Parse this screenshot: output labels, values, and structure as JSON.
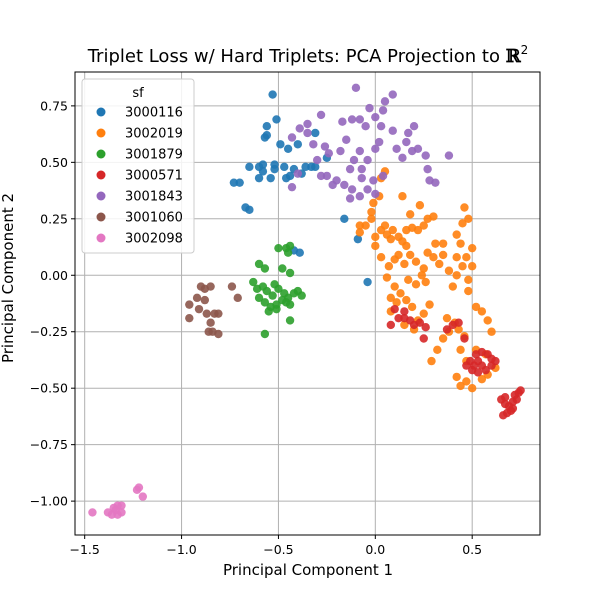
{
  "chart_data": {
    "type": "scatter",
    "title": "Triplet Loss w/ Hard Triplets: PCA Projection to ℝ²",
    "title_text": "Triplet Loss w/ Hard Triplets: PCA Projection to",
    "title_symbol": "ℝ",
    "title_superscript": "2",
    "xlabel": "Principal Component 1",
    "ylabel": "Principal Component 2",
    "xlim": [
      -1.55,
      0.85
    ],
    "ylim": [
      -1.15,
      0.9
    ],
    "xticks": [
      -1.5,
      -1.0,
      -0.5,
      0.0,
      0.5
    ],
    "xtick_labels": [
      "−1.5",
      "−1.0",
      "−0.5",
      "0.0",
      "0.5"
    ],
    "yticks": [
      -1.0,
      -0.75,
      -0.5,
      -0.25,
      0.0,
      0.25,
      0.5,
      0.75
    ],
    "ytick_labels": [
      "−1.00",
      "−0.75",
      "−0.50",
      "−0.25",
      "0.00",
      "0.25",
      "0.50",
      "0.75"
    ],
    "grid": true,
    "legend_title": "sf",
    "legend_position": "top-left",
    "series": [
      {
        "name": "3000116",
        "color": "#1f77b4",
        "points": [
          [
            -0.53,
            0.8
          ],
          [
            -0.51,
            0.69
          ],
          [
            -0.56,
            0.66
          ],
          [
            -0.56,
            0.62
          ],
          [
            -0.57,
            0.61
          ],
          [
            -0.49,
            0.58
          ],
          [
            -0.45,
            0.56
          ],
          [
            -0.4,
            0.58
          ],
          [
            -0.31,
            0.63
          ],
          [
            -0.65,
            0.48
          ],
          [
            -0.6,
            0.48
          ],
          [
            -0.58,
            0.49
          ],
          [
            -0.58,
            0.46
          ],
          [
            -0.6,
            0.43
          ],
          [
            -0.54,
            0.43
          ],
          [
            -0.52,
            0.47
          ],
          [
            -0.47,
            0.48
          ],
          [
            -0.44,
            0.44
          ],
          [
            -0.42,
            0.47
          ],
          [
            -0.38,
            0.45
          ],
          [
            -0.36,
            0.48
          ],
          [
            -0.33,
            0.48
          ],
          [
            -0.31,
            0.48
          ],
          [
            -0.7,
            0.41
          ],
          [
            -0.73,
            0.41
          ],
          [
            -0.67,
            0.3
          ],
          [
            -0.65,
            0.29
          ],
          [
            -0.52,
            0.49
          ],
          [
            -0.46,
            0.43
          ],
          [
            -0.39,
            0.1
          ],
          [
            -0.42,
            0.11
          ],
          [
            -0.04,
            -0.03
          ],
          [
            -0.25,
            0.52
          ],
          [
            -0.16,
            0.25
          ],
          [
            -0.09,
            0.16
          ]
        ]
      },
      {
        "name": "3002019",
        "color": "#ff7f0e",
        "points": [
          [
            0.05,
            0.46
          ],
          [
            0.03,
            0.43
          ],
          [
            0.02,
            0.35
          ],
          [
            -0.01,
            0.32
          ],
          [
            -0.02,
            0.28
          ],
          [
            -0.02,
            0.25
          ],
          [
            -0.05,
            0.22
          ],
          [
            -0.08,
            0.22
          ],
          [
            -0.08,
            0.19
          ],
          [
            0.0,
            0.17
          ],
          [
            0.03,
            0.2
          ],
          [
            0.06,
            0.18
          ],
          [
            0.08,
            0.16
          ],
          [
            0.09,
            0.2
          ],
          [
            0.12,
            0.17
          ],
          [
            0.14,
            0.15
          ],
          [
            0.16,
            0.2
          ],
          [
            0.19,
            0.21
          ],
          [
            0.22,
            0.2
          ],
          [
            0.25,
            0.22
          ],
          [
            0.27,
            0.25
          ],
          [
            0.3,
            0.26
          ],
          [
            0.23,
            0.31
          ],
          [
            0.18,
            0.27
          ],
          [
            0.14,
            0.35
          ],
          [
            0.16,
            0.13
          ],
          [
            0.18,
            0.09
          ],
          [
            0.21,
            0.06
          ],
          [
            0.25,
            0.03
          ],
          [
            0.12,
            0.09
          ],
          [
            0.15,
            0.05
          ],
          [
            0.1,
            0.07
          ],
          [
            0.07,
            0.04
          ],
          [
            0.03,
            0.08
          ],
          [
            0.06,
            -0.01
          ],
          [
            0.1,
            -0.05
          ],
          [
            0.13,
            -0.08
          ],
          [
            0.16,
            -0.11
          ],
          [
            0.19,
            -0.14
          ],
          [
            0.11,
            -0.12
          ],
          [
            0.08,
            -0.1
          ],
          [
            0.08,
            -0.16
          ],
          [
            0.15,
            -0.22
          ],
          [
            0.2,
            -0.24
          ],
          [
            0.22,
            -0.2
          ],
          [
            0.25,
            -0.17
          ],
          [
            0.28,
            -0.13
          ],
          [
            0.29,
            -0.38
          ],
          [
            0.32,
            -0.33
          ],
          [
            0.35,
            -0.28
          ],
          [
            0.38,
            -0.25
          ],
          [
            0.37,
            -0.19
          ],
          [
            0.41,
            -0.21
          ],
          [
            0.43,
            -0.24
          ],
          [
            0.46,
            -0.27
          ],
          [
            0.4,
            -0.05
          ],
          [
            0.42,
            0.0
          ],
          [
            0.45,
            0.04
          ],
          [
            0.47,
            0.08
          ],
          [
            0.5,
            0.12
          ],
          [
            0.5,
            0.04
          ],
          [
            0.48,
            -0.02
          ],
          [
            0.44,
            0.14
          ],
          [
            0.42,
            0.18
          ],
          [
            0.45,
            0.23
          ],
          [
            0.48,
            0.25
          ],
          [
            0.46,
            0.3
          ],
          [
            0.42,
            0.08
          ],
          [
            0.48,
            -0.07
          ],
          [
            0.52,
            -0.14
          ],
          [
            0.55,
            -0.16
          ],
          [
            0.58,
            -0.2
          ],
          [
            0.6,
            -0.25
          ],
          [
            0.44,
            -0.33
          ],
          [
            0.47,
            -0.38
          ],
          [
            0.52,
            -0.33
          ],
          [
            0.57,
            -0.35
          ],
          [
            0.42,
            -0.45
          ],
          [
            0.44,
            -0.49
          ],
          [
            0.47,
            -0.47
          ],
          [
            0.5,
            -0.5
          ],
          [
            0.55,
            -0.46
          ],
          [
            0.58,
            -0.44
          ],
          [
            0.62,
            -0.41
          ],
          [
            0.31,
            0.14
          ],
          [
            0.3,
            0.08
          ],
          [
            0.27,
            0.1
          ],
          [
            0.35,
            0.09
          ],
          [
            0.33,
            0.05
          ],
          [
            0.26,
            -0.03
          ],
          [
            0.24,
            0.0
          ],
          [
            0.21,
            -0.04
          ],
          [
            0.17,
            -0.02
          ],
          [
            0.05,
            0.22
          ],
          [
            0.0,
            0.13
          ],
          [
            0.38,
            0.02
          ],
          [
            0.35,
            0.14
          ]
        ]
      },
      {
        "name": "3001879",
        "color": "#2ca02c",
        "points": [
          [
            -0.5,
            0.12
          ],
          [
            -0.46,
            0.12
          ],
          [
            -0.44,
            0.13
          ],
          [
            -0.45,
            0.1
          ],
          [
            -0.6,
            0.05
          ],
          [
            -0.57,
            0.03
          ],
          [
            -0.48,
            0.03
          ],
          [
            -0.44,
            0.01
          ],
          [
            -0.63,
            -0.03
          ],
          [
            -0.61,
            -0.06
          ],
          [
            -0.58,
            -0.05
          ],
          [
            -0.56,
            -0.07
          ],
          [
            -0.53,
            -0.09
          ],
          [
            -0.5,
            -0.06
          ],
          [
            -0.47,
            -0.08
          ],
          [
            -0.45,
            -0.1
          ],
          [
            -0.42,
            -0.08
          ],
          [
            -0.4,
            -0.07
          ],
          [
            -0.38,
            -0.09
          ],
          [
            -0.6,
            -0.1
          ],
          [
            -0.57,
            -0.12
          ],
          [
            -0.54,
            -0.14
          ],
          [
            -0.51,
            -0.13
          ],
          [
            -0.48,
            -0.11
          ],
          [
            -0.44,
            -0.13
          ],
          [
            -0.55,
            -0.16
          ],
          [
            -0.51,
            -0.15
          ],
          [
            -0.57,
            -0.26
          ],
          [
            -0.44,
            -0.2
          ],
          [
            -0.46,
            -0.12
          ],
          [
            -0.52,
            -0.04
          ]
        ]
      },
      {
        "name": "3000571",
        "color": "#d62728",
        "points": [
          [
            0.1,
            -0.15
          ],
          [
            0.12,
            -0.19
          ],
          [
            0.15,
            -0.19
          ],
          [
            0.18,
            -0.2
          ],
          [
            0.2,
            -0.22
          ],
          [
            0.23,
            -0.21
          ],
          [
            0.26,
            -0.23
          ],
          [
            0.25,
            -0.28
          ],
          [
            0.08,
            -0.22
          ],
          [
            0.15,
            -0.16
          ],
          [
            0.37,
            -0.24
          ],
          [
            0.4,
            -0.22
          ],
          [
            0.43,
            -0.21
          ],
          [
            0.46,
            -0.28
          ],
          [
            0.49,
            -0.38
          ],
          [
            0.51,
            -0.4
          ],
          [
            0.53,
            -0.38
          ],
          [
            0.55,
            -0.4
          ],
          [
            0.57,
            -0.42
          ],
          [
            0.6,
            -0.4
          ],
          [
            0.52,
            -0.35
          ],
          [
            0.55,
            -0.34
          ],
          [
            0.58,
            -0.35
          ],
          [
            0.6,
            -0.37
          ],
          [
            0.5,
            -0.42
          ],
          [
            0.53,
            -0.43
          ],
          [
            0.47,
            -0.4
          ],
          [
            0.62,
            -0.38
          ],
          [
            0.65,
            -0.55
          ],
          [
            0.67,
            -0.57
          ],
          [
            0.69,
            -0.58
          ],
          [
            0.71,
            -0.56
          ],
          [
            0.72,
            -0.53
          ],
          [
            0.74,
            -0.52
          ],
          [
            0.75,
            -0.51
          ],
          [
            0.73,
            -0.55
          ],
          [
            0.7,
            -0.6
          ],
          [
            0.68,
            -0.61
          ],
          [
            0.66,
            -0.62
          ],
          [
            0.71,
            -0.59
          ],
          [
            0.67,
            -0.54
          ]
        ]
      },
      {
        "name": "3001843",
        "color": "#9467bd",
        "points": [
          [
            -0.1,
            0.83
          ],
          [
            -0.03,
            0.74
          ],
          [
            0.05,
            0.77
          ],
          [
            0.09,
            0.8
          ],
          [
            0.04,
            0.73
          ],
          [
            -0.08,
            0.69
          ],
          [
            -0.05,
            0.66
          ],
          [
            0.0,
            0.7
          ],
          [
            0.03,
            0.66
          ],
          [
            0.09,
            0.64
          ],
          [
            0.17,
            0.63
          ],
          [
            0.2,
            0.66
          ],
          [
            -0.12,
            0.69
          ],
          [
            -0.17,
            0.68
          ],
          [
            -0.28,
            0.71
          ],
          [
            -0.35,
            0.67
          ],
          [
            -0.39,
            0.65
          ],
          [
            -0.43,
            0.61
          ],
          [
            -0.35,
            0.63
          ],
          [
            -0.32,
            0.58
          ],
          [
            -0.26,
            0.57
          ],
          [
            -0.3,
            0.51
          ],
          [
            -0.24,
            0.54
          ],
          [
            -0.18,
            0.55
          ],
          [
            -0.15,
            0.6
          ],
          [
            -0.08,
            0.55
          ],
          [
            -0.11,
            0.51
          ],
          [
            -0.13,
            0.47
          ],
          [
            -0.07,
            0.47
          ],
          [
            -0.04,
            0.51
          ],
          [
            0.0,
            0.56
          ],
          [
            0.02,
            0.59
          ],
          [
            0.16,
            0.59
          ],
          [
            0.19,
            0.55
          ],
          [
            0.22,
            0.56
          ],
          [
            0.26,
            0.53
          ],
          [
            0.27,
            0.47
          ],
          [
            0.28,
            0.42
          ],
          [
            0.31,
            0.41
          ],
          [
            0.38,
            0.53
          ],
          [
            -0.25,
            0.44
          ],
          [
            -0.22,
            0.4
          ],
          [
            -0.2,
            0.42
          ],
          [
            -0.16,
            0.4
          ],
          [
            -0.12,
            0.38
          ],
          [
            -0.08,
            0.35
          ],
          [
            -0.04,
            0.38
          ],
          [
            -0.01,
            0.42
          ],
          [
            0.04,
            0.44
          ],
          [
            -0.13,
            0.34
          ],
          [
            -0.43,
            0.39
          ],
          [
            -0.4,
            0.45
          ],
          [
            -0.28,
            0.44
          ],
          [
            -0.07,
            0.43
          ],
          [
            0.0,
            0.36
          ],
          [
            0.11,
            0.56
          ],
          [
            0.14,
            0.52
          ]
        ]
      },
      {
        "name": "3001060",
        "color": "#8c564b",
        "points": [
          [
            -0.9,
            -0.05
          ],
          [
            -0.88,
            -0.06
          ],
          [
            -0.85,
            -0.05
          ],
          [
            -0.92,
            -0.1
          ],
          [
            -0.88,
            -0.11
          ],
          [
            -0.96,
            -0.13
          ],
          [
            -0.91,
            -0.15
          ],
          [
            -0.87,
            -0.17
          ],
          [
            -0.83,
            -0.17
          ],
          [
            -0.85,
            -0.21
          ],
          [
            -0.81,
            -0.17
          ],
          [
            -0.74,
            -0.05
          ],
          [
            -0.96,
            -0.19
          ],
          [
            -0.86,
            -0.25
          ],
          [
            -0.84,
            -0.25
          ],
          [
            -0.81,
            -0.26
          ],
          [
            -0.71,
            -0.1
          ]
        ]
      },
      {
        "name": "3002098",
        "color": "#e377c2",
        "points": [
          [
            -1.23,
            -0.95
          ],
          [
            -1.22,
            -0.94
          ],
          [
            -1.2,
            -0.98
          ],
          [
            -1.33,
            -1.02
          ],
          [
            -1.31,
            -1.02
          ],
          [
            -1.35,
            -1.03
          ],
          [
            -1.46,
            -1.05
          ],
          [
            -1.38,
            -1.05
          ],
          [
            -1.36,
            -1.06
          ],
          [
            -1.33,
            -1.06
          ],
          [
            -1.31,
            -1.05
          ],
          [
            -1.34,
            -1.04
          ]
        ]
      }
    ]
  }
}
